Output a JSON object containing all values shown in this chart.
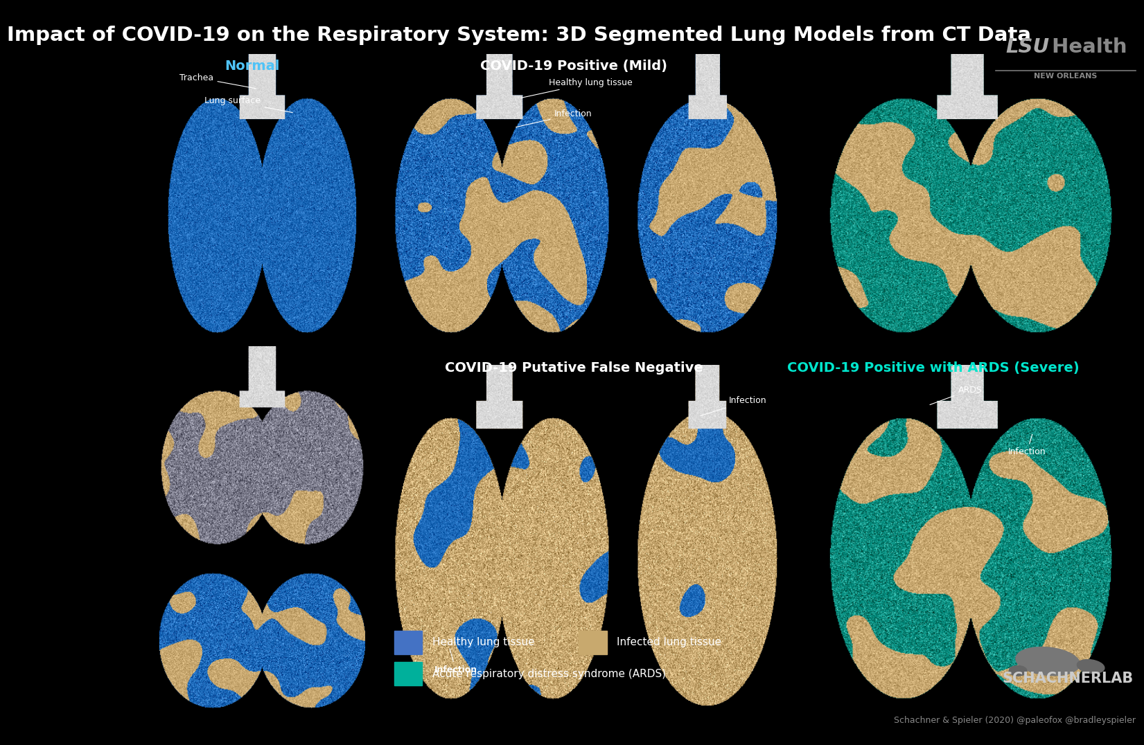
{
  "title": "Impact of COVID-19 on the Respiratory System: 3D Segmented Lung Models from CT Data",
  "title_fontsize": 21,
  "title_color": "#ffffff",
  "background_color": "#000000",
  "section_labels": {
    "normal": "Normal",
    "covid_mild": "COVID-19 Positive (Mild)",
    "covid_false_neg": "COVID-19 Putative False Negative",
    "covid_ards": "COVID-19 Positive with ARDS (Severe)"
  },
  "section_label_colors": {
    "normal": "#4fc3f7",
    "covid_mild": "#ffffff",
    "covid_false_neg": "#ffffff",
    "covid_ards": "#00e5cc"
  },
  "section_label_fontsize": 14,
  "legend_items": [
    {
      "label": "Healthy lung tissue",
      "color": "#4472c4"
    },
    {
      "label": "Infected lung tissue",
      "color": "#c8a96e"
    },
    {
      "label": "Acute respiratory distress syndrome (ARDS)",
      "color": "#00b09b"
    }
  ],
  "legend_fontsize": 11,
  "credit_text": "Schachner & Spieler (2020) @paleofox @bradleyspieler",
  "credit_fontsize": 9,
  "lsu_italic": "LSU",
  "lsu_regular": " Health",
  "lsu_sub": "NEW ORLEANS",
  "schachner_label": "SCHACHNERLAB"
}
